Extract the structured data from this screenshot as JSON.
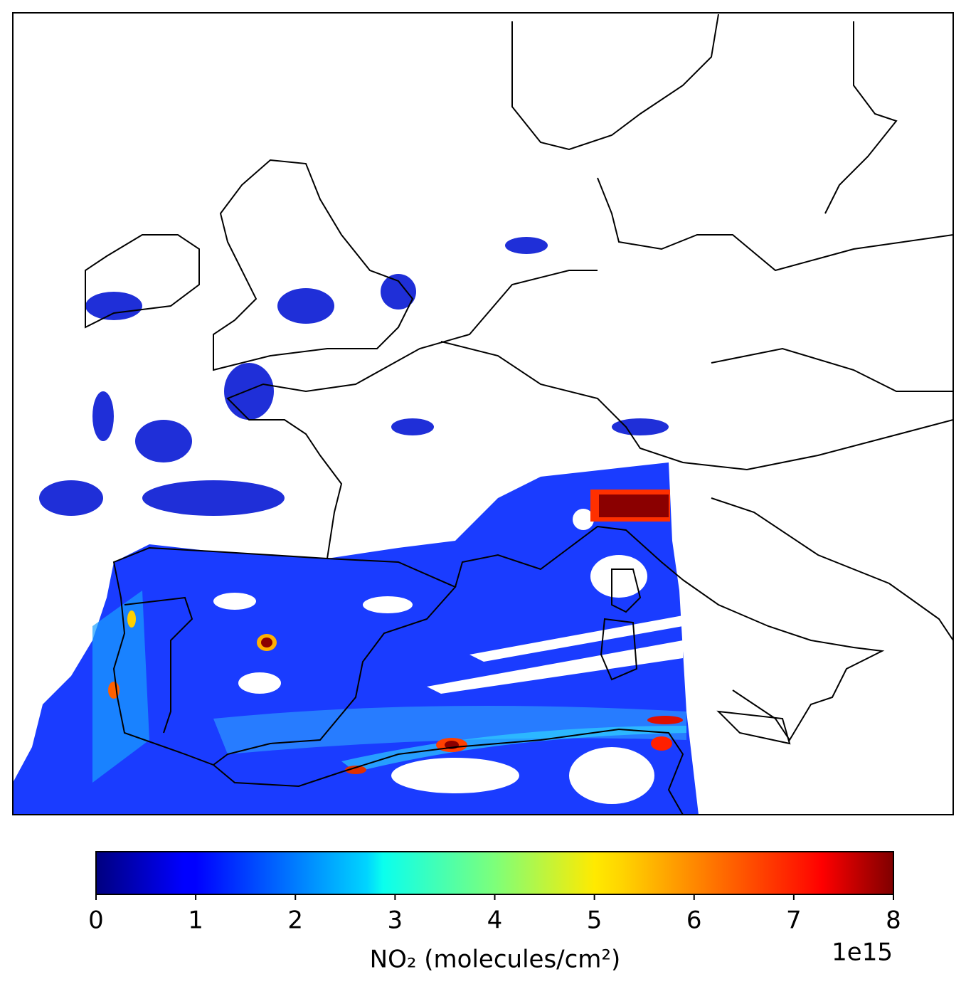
{
  "colorbar": {
    "colormap": "jet",
    "clim": [
      0,
      8
    ],
    "ticks": [
      0,
      1,
      2,
      3,
      4,
      5,
      6,
      7,
      8
    ],
    "label": "NO₂ (molecules/cm²)",
    "offset_label": "1e15"
  }
}
